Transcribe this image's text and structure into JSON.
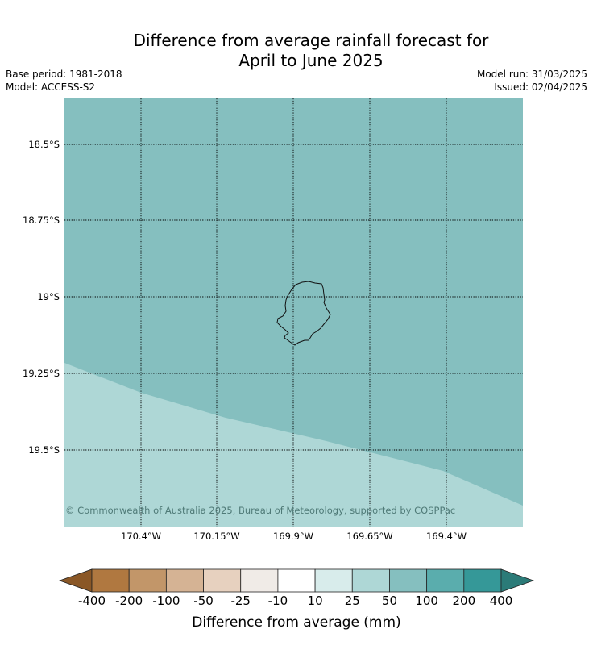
{
  "header": {
    "title_line1": "Difference from average rainfall forecast for",
    "title_line2": "April to June 2025",
    "base_period": "Base period: 1981-2018",
    "model": "Model: ACCESS-S2",
    "model_run": "Model run: 31/03/2025",
    "issued": "Issued: 02/04/2025"
  },
  "map": {
    "lat_labels": [
      "18.5°S",
      "18.75°S",
      "19°S",
      "19.25°S",
      "19.5°S"
    ],
    "lon_labels": [
      "170.4°W",
      "170.15°W",
      "169.9°W",
      "169.65°W",
      "169.4°W"
    ],
    "copyright": "© Commonwealth of Australia 2025, Bureau of Meteorology, supported by COSPPac",
    "colors": {
      "upper_region": "#85bfbf",
      "lower_region": "#aed7d6",
      "coastline": "#111111",
      "gridline": "#000000"
    }
  },
  "colorbar": {
    "title": "Difference from average (mm)",
    "labels": [
      "-400",
      "-200",
      "-100",
      "-50",
      "-25",
      "-10",
      "10",
      "25",
      "50",
      "100",
      "200",
      "400"
    ],
    "colors": [
      "#8a5726",
      "#b07840",
      "#c29669",
      "#d5b394",
      "#e7d1bf",
      "#f0ebe7",
      "#ffffff",
      "#d8eceb",
      "#aed7d6",
      "#85bfbf",
      "#5aadad",
      "#359898",
      "#2b7b78"
    ]
  }
}
